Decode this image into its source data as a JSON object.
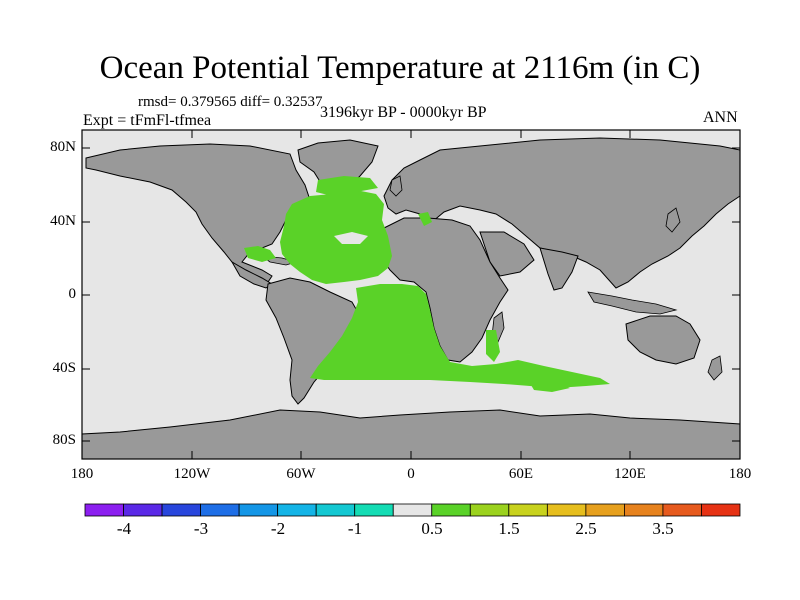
{
  "title": "Ocean Potential Temperature at 2116m (in C)",
  "stats": "rmsd= 0.379565 diff= 0.32537",
  "experiment": "Expt = tFmFl-tfmea",
  "period": "3196kyr BP - 0000kyr BP",
  "season": "ANN",
  "lat_labels": [
    "80N",
    "40N",
    "0",
    "40S",
    "80S"
  ],
  "lon_labels": [
    "180",
    "120W",
    "60W",
    "0",
    "60E",
    "120E",
    "180"
  ],
  "colorbar": {
    "colors": [
      "#8c1ff0",
      "#5a28e6",
      "#2846dc",
      "#1e6ee6",
      "#1496e6",
      "#14b4e6",
      "#14c8d2",
      "#14dcb4",
      "#e6e6e6",
      "#5ad228",
      "#9bd21e",
      "#c8d21e",
      "#e6be1e",
      "#e6a01e",
      "#e6821e",
      "#e65a1e",
      "#e63214"
    ],
    "labels": [
      "-4",
      "-3",
      "-2",
      "-1",
      "0.5",
      "1.5",
      "2.5",
      "3.5"
    ]
  },
  "legend_colors": {
    "land": "#999999",
    "ocean_near_zero": "#e6e6e6",
    "warm_anomaly": "#5ad228"
  }
}
